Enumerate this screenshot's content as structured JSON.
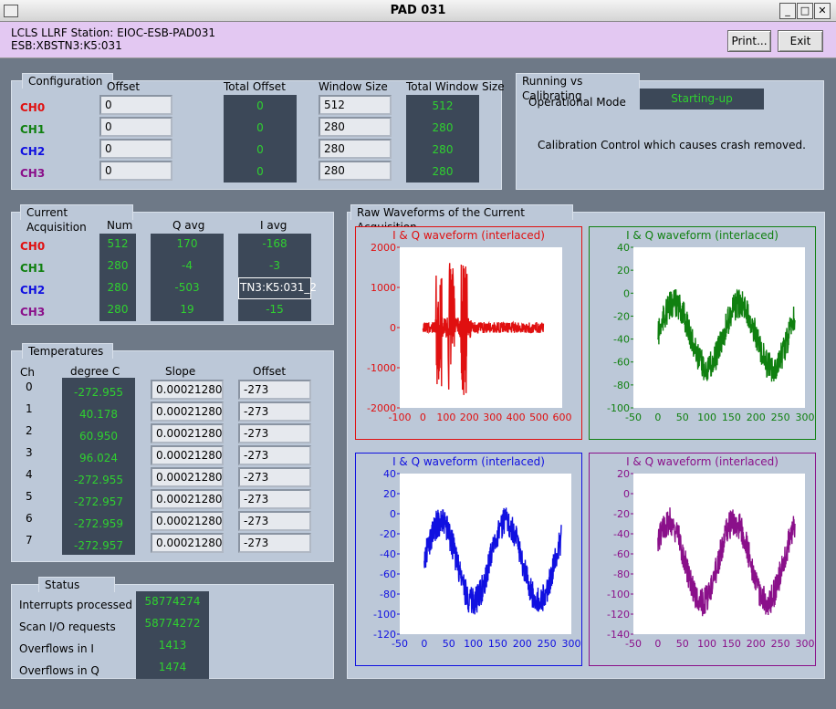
{
  "window": {
    "title": "PAD 031"
  },
  "header": {
    "line1": "LCLS LLRF Station: EIOC-ESB-PAD031",
    "line2": "ESB:XBSTN3:K5:031",
    "print_label": "Print...",
    "exit_label": "Exit"
  },
  "config": {
    "title": "Configuration",
    "headers": {
      "offset": "Offset",
      "total_offset": "Total Offset",
      "window_size": "Window Size",
      "total_window_size": "Total Window Size"
    },
    "rows": [
      {
        "ch": "CH0",
        "offset": "0",
        "total_offset": "0",
        "window_size": "512",
        "total_window_size": "512"
      },
      {
        "ch": "CH1",
        "offset": "0",
        "total_offset": "0",
        "window_size": "280",
        "total_window_size": "280"
      },
      {
        "ch": "CH2",
        "offset": "0",
        "total_offset": "0",
        "window_size": "280",
        "total_window_size": "280"
      },
      {
        "ch": "CH3",
        "offset": "0",
        "total_offset": "0",
        "window_size": "280",
        "total_window_size": "280"
      }
    ]
  },
  "running": {
    "title": "Running vs Calibrating",
    "mode_label": "Operational Mode",
    "mode_value": "Starting-up",
    "note": "Calibration Control which causes crash removed."
  },
  "acq": {
    "title": "Current Acquisition",
    "headers": {
      "num": "Num",
      "q": "Q avg",
      "i": "I avg"
    },
    "rows": [
      {
        "ch": "CH0",
        "num": "512",
        "q": "170",
        "i": "-168"
      },
      {
        "ch": "CH1",
        "num": "280",
        "q": "-4",
        "i": "-3"
      },
      {
        "ch": "CH2",
        "num": "280",
        "q": "-503",
        "i": "TN3:K5:031_2"
      },
      {
        "ch": "CH3",
        "num": "280",
        "q": "19",
        "i": "-15"
      }
    ]
  },
  "temps": {
    "title": "Temperatures",
    "headers": {
      "ch": "Ch",
      "deg": "degree C",
      "slope": "Slope",
      "offset": "Offset"
    },
    "rows": [
      {
        "ch": "0",
        "deg": "-272.955",
        "slope": "0.00021280",
        "offset": "-273"
      },
      {
        "ch": "1",
        "deg": "40.178",
        "slope": "0.00021280",
        "offset": "-273"
      },
      {
        "ch": "2",
        "deg": "60.950",
        "slope": "0.00021280",
        "offset": "-273"
      },
      {
        "ch": "3",
        "deg": "96.024",
        "slope": "0.00021280",
        "offset": "-273"
      },
      {
        "ch": "4",
        "deg": "-272.955",
        "slope": "0.00021280",
        "offset": "-273"
      },
      {
        "ch": "5",
        "deg": "-272.957",
        "slope": "0.00021280",
        "offset": "-273"
      },
      {
        "ch": "6",
        "deg": "-272.959",
        "slope": "0.00021280",
        "offset": "-273"
      },
      {
        "ch": "7",
        "deg": "-272.957",
        "slope": "0.00021280",
        "offset": "-273"
      }
    ]
  },
  "status": {
    "title": "Status",
    "rows": [
      {
        "label": "Interrupts processed",
        "value": "58774274"
      },
      {
        "label": "Scan I/O requests",
        "value": "58774272"
      },
      {
        "label": "Overflows in I",
        "value": "1413"
      },
      {
        "label": "Overflows in Q",
        "value": "1474"
      }
    ]
  },
  "waveforms": {
    "title": "Raw Waveforms of the Current Acquisition",
    "plots": [
      {
        "title": "I & Q waveform (interlaced)",
        "color": "#e01010",
        "xticks": [
          "-100",
          "0",
          "100",
          "200",
          "300",
          "400",
          "500",
          "600"
        ],
        "yticks": [
          "2000",
          "1000",
          "0",
          "-1000",
          "-2000"
        ]
      },
      {
        "title": "I & Q waveform (interlaced)",
        "color": "#108010",
        "xticks": [
          "-50",
          "0",
          "50",
          "100",
          "150",
          "200",
          "250",
          "300"
        ],
        "yticks": [
          "40",
          "20",
          "0",
          "-20",
          "-40",
          "-60",
          "-80",
          "-100"
        ]
      },
      {
        "title": "I & Q waveform (interlaced)",
        "color": "#1010e0",
        "xticks": [
          "-50",
          "0",
          "50",
          "100",
          "150",
          "200",
          "250",
          "300"
        ],
        "yticks": [
          "40",
          "20",
          "0",
          "-20",
          "-40",
          "-60",
          "-80",
          "-100",
          "-120"
        ]
      },
      {
        "title": "I & Q waveform (interlaced)",
        "color": "#8a108a",
        "xticks": [
          "-50",
          "0",
          "50",
          "100",
          "150",
          "200",
          "250",
          "300"
        ],
        "yticks": [
          "20",
          "0",
          "-20",
          "-40",
          "-60",
          "-80",
          "-100",
          "-120",
          "-140"
        ]
      }
    ]
  },
  "colors": {
    "ch0": "#e01010",
    "ch1": "#108010",
    "ch2": "#1010e0",
    "ch3": "#8a108a",
    "readback": "#2fd12f"
  }
}
